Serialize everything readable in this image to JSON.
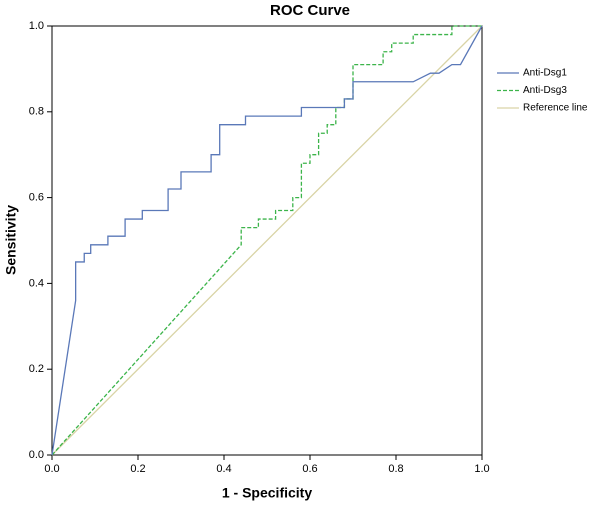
{
  "chart_data": {
    "type": "line",
    "title": "ROC Curve",
    "x_label": "1 - Specificity",
    "y_label": "Sensitivity",
    "xlim": [
      0,
      1
    ],
    "ylim": [
      0,
      1
    ],
    "xticks": [
      {
        "value": 0,
        "label": "0.0"
      },
      {
        "value": 0.2,
        "label": "0.2"
      },
      {
        "value": 0.4,
        "label": "0.4"
      },
      {
        "value": 0.6,
        "label": "0.6"
      },
      {
        "value": 0.8,
        "label": "0.8"
      },
      {
        "value": 1,
        "label": "1.0"
      }
    ],
    "yticks": [
      {
        "value": 0,
        "label": "0.0"
      },
      {
        "value": 0.2,
        "label": "0.2"
      },
      {
        "value": 0.4,
        "label": "0.4"
      },
      {
        "value": 0.6,
        "label": "0.6"
      },
      {
        "value": 0.8,
        "label": "0.8"
      },
      {
        "value": 1,
        "label": "1.0"
      }
    ],
    "grid": false,
    "legend": "right",
    "series": [
      {
        "name": "Anti-Dsg1",
        "color": "#5a78b8",
        "style": "solid",
        "x": [
          0,
          0.055,
          0.055,
          0.075,
          0.075,
          0.09,
          0.09,
          0.13,
          0.13,
          0.17,
          0.17,
          0.21,
          0.21,
          0.27,
          0.27,
          0.3,
          0.3,
          0.37,
          0.37,
          0.39,
          0.39,
          0.45,
          0.45,
          0.58,
          0.58,
          0.68,
          0.68,
          0.7,
          0.7,
          0.84,
          0.88,
          0.9,
          0.93,
          0.95,
          1
        ],
        "values": [
          0,
          0.36,
          0.45,
          0.45,
          0.47,
          0.47,
          0.49,
          0.49,
          0.51,
          0.51,
          0.55,
          0.55,
          0.57,
          0.57,
          0.62,
          0.62,
          0.66,
          0.66,
          0.7,
          0.7,
          0.77,
          0.77,
          0.79,
          0.79,
          0.81,
          0.81,
          0.83,
          0.83,
          0.87,
          0.87,
          0.89,
          0.89,
          0.91,
          0.91,
          1
        ]
      },
      {
        "name": "Anti-Dsg3",
        "color": "#3cb44a",
        "style": "dashed",
        "x": [
          0,
          0.44,
          0.44,
          0.48,
          0.48,
          0.52,
          0.52,
          0.56,
          0.56,
          0.58,
          0.58,
          0.6,
          0.6,
          0.62,
          0.62,
          0.64,
          0.64,
          0.66,
          0.66,
          0.68,
          0.68,
          0.7,
          0.7,
          0.77,
          0.77,
          0.79,
          0.79,
          0.84,
          0.84,
          0.93,
          0.93,
          1
        ],
        "values": [
          0,
          0.49,
          0.53,
          0.53,
          0.55,
          0.55,
          0.57,
          0.57,
          0.6,
          0.6,
          0.68,
          0.68,
          0.7,
          0.7,
          0.75,
          0.75,
          0.77,
          0.77,
          0.81,
          0.81,
          0.83,
          0.83,
          0.91,
          0.91,
          0.94,
          0.94,
          0.96,
          0.96,
          0.98,
          0.98,
          1,
          1
        ]
      },
      {
        "name": "Reference line",
        "color": "#d9d4a6",
        "style": "solid",
        "x": [
          0,
          1
        ],
        "values": [
          0,
          1
        ]
      }
    ]
  }
}
